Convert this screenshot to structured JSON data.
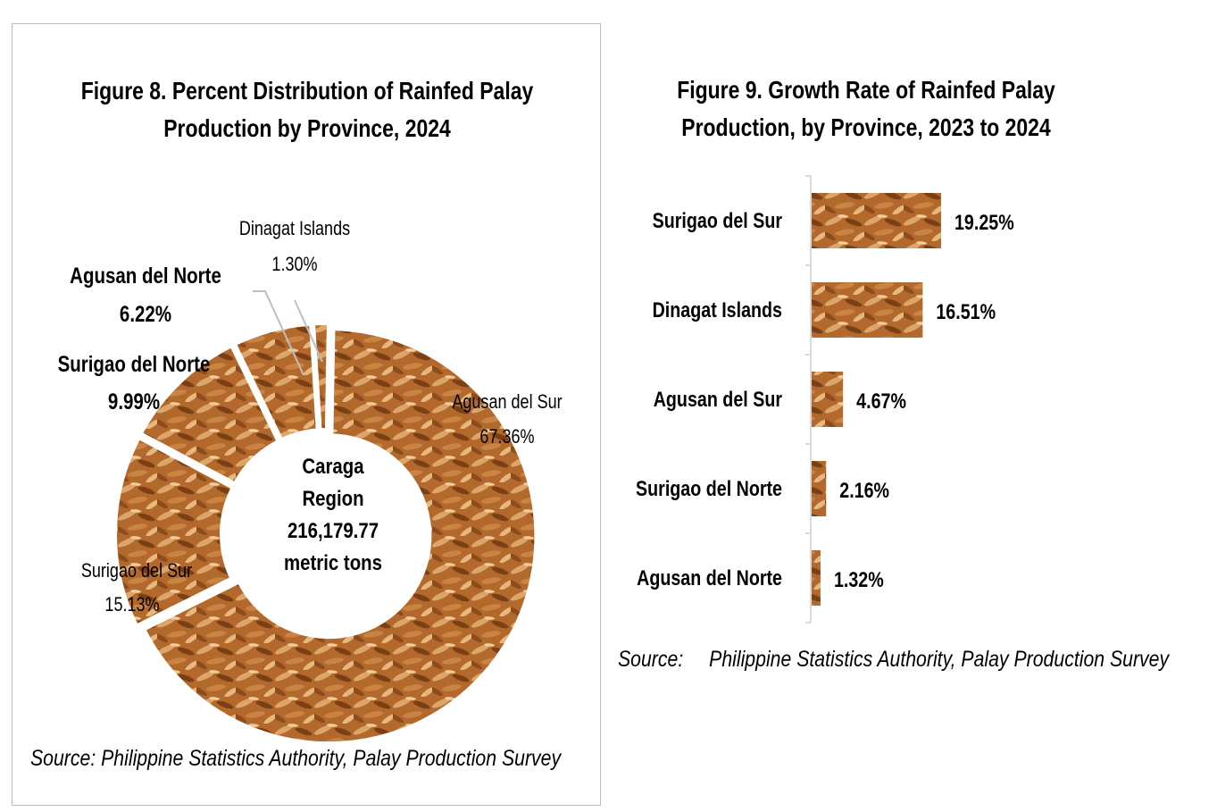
{
  "chart_data": [
    {
      "type": "pie",
      "title": "Figure 8. Percent Distribution of Rainfed Palay Production by Province, 2024",
      "title_lines": [
        "Figure 8. Percent Distribution of Rainfed Palay",
        "Production by Province, 2024"
      ],
      "categories": [
        "Agusan del Sur",
        "Surigao del Sur",
        "Surigao del Norte",
        "Agusan del Norte",
        "Dinagat Islands"
      ],
      "values": [
        67.36,
        15.13,
        9.99,
        6.22,
        1.3
      ],
      "value_labels": [
        "67.36%",
        "15.13%",
        "9.99%",
        "6.22%",
        "1.30%"
      ],
      "center_label": [
        "Caraga",
        "Region",
        "216,179.77",
        "metric tons"
      ],
      "source": "Source: Philippine Statistics Authority, Palay Production Survey"
    },
    {
      "type": "bar",
      "orientation": "horizontal",
      "title": "Figure 9. Growth Rate of Rainfed Palay Production, by Province, 2023 to 2024",
      "title_lines": [
        "Figure 9. Growth Rate of Rainfed Palay",
        "Production, by Province, 2023 to 2024"
      ],
      "categories": [
        "Surigao del Sur",
        "Dinagat Islands",
        "Agusan del Sur",
        "Surigao del Norte",
        "Agusan del Norte"
      ],
      "values": [
        19.25,
        16.51,
        4.67,
        2.16,
        1.32
      ],
      "value_labels": [
        "19.25%",
        "16.51%",
        "4.67%",
        "2.16%",
        "1.32%"
      ],
      "source_prefix": "Source:",
      "source_text": "Philippine Statistics Authority, Palay Production Survey"
    }
  ],
  "colors": {
    "grain_dark": "#7a3f14",
    "grain_mid": "#b4692c",
    "grain_light": "#dca66a",
    "axis": "#d9d9d9",
    "leader": "#bfbfbf"
  }
}
